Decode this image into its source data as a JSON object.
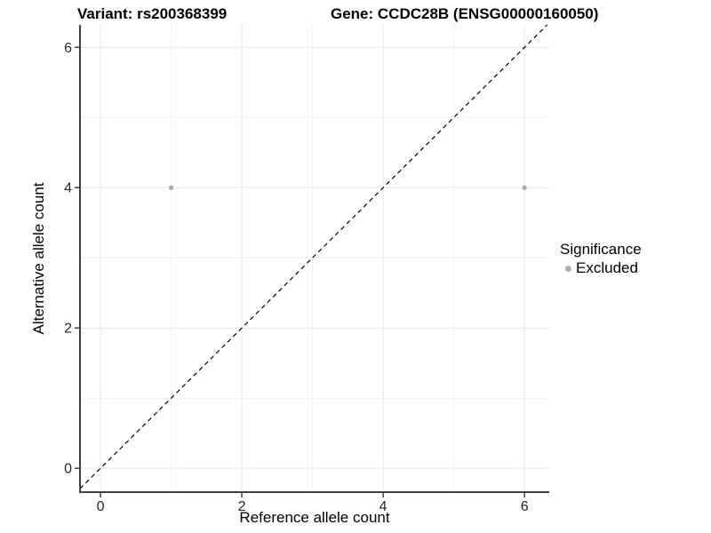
{
  "title": {
    "variant": "Variant: rs200368399",
    "gene": "Gene: CCDC28B (ENSG00000160050)"
  },
  "axes": {
    "x_label": "Reference allele count",
    "y_label": "Alternative allele count"
  },
  "legend": {
    "title": "Significance",
    "items": [
      {
        "label": "Excluded",
        "color": "#b0b0b0"
      }
    ]
  },
  "colors": {
    "background": "#ffffff",
    "grid_major": "#e6e6e6",
    "grid_minor": "#f1f1f1",
    "axis_line": "#404040",
    "tick_label": "#262626",
    "point_excluded": "#aaaaaa",
    "identity_line": "#000000"
  },
  "chart_data": {
    "type": "scatter",
    "title_left": "Variant: rs200368399",
    "title_right": "Gene: CCDC28B (ENSG00000160050)",
    "xlabel": "Reference allele count",
    "ylabel": "Alternative allele count",
    "xlim": [
      -0.29,
      6.35
    ],
    "ylim": [
      -0.34,
      6.32
    ],
    "x_ticks": [
      0,
      2,
      4,
      6
    ],
    "y_ticks": [
      0,
      2,
      4,
      6
    ],
    "x_minor_gridlines": [
      1,
      3,
      5
    ],
    "y_minor_gridlines": [
      1,
      3,
      5
    ],
    "grid": true,
    "legend_position": "right",
    "legend_title": "Significance",
    "series": [
      {
        "name": "Excluded",
        "color": "#aaaaaa",
        "points": [
          {
            "x": 1,
            "y": 4
          },
          {
            "x": 6,
            "y": 4
          }
        ]
      }
    ],
    "reference_line": {
      "type": "identity_y_equals_x",
      "style": "dashed",
      "color": "#000000"
    }
  }
}
